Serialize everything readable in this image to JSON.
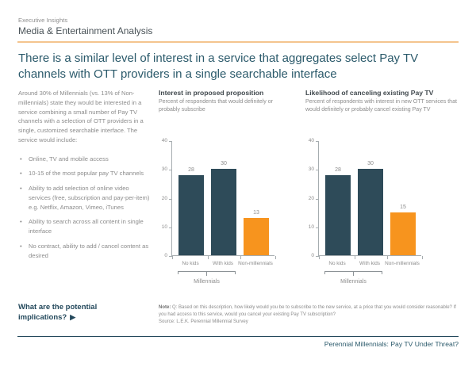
{
  "header": {
    "eyebrow": "Executive Insights",
    "title": "Media & Entertainment Analysis"
  },
  "page_title": "There is a similar level of interest in a service that aggregates select Pay TV channels with OTT providers in a single searchable interface",
  "left_column": {
    "intro": "Around 30% of Millennials (vs. 13% of Non-millennials) state they would be interested in a service combining a small number of Pay TV channels with a selection of OTT providers in a single, customized searchable interface. The service would include:",
    "bullets": [
      "Online, TV and mobile access",
      "10-15 of the most popular pay TV channels",
      "Ability to add selection of online video services (free, subscription and pay-per-item) e.g. Netflix, Amazon, Vimeo, iTunes",
      "Ability to search across all content in single interface",
      "No contract, ability to add / cancel content as desired"
    ]
  },
  "chart_data": [
    {
      "type": "bar",
      "title": "Interest in proposed proposition",
      "subtitle": "Percent of respondents that would definitely or probably subscribe",
      "categories": [
        "No kids",
        "With kids",
        "Non-millennials"
      ],
      "values": [
        28,
        30,
        13
      ],
      "bar_colors": [
        "#2E4B59",
        "#2E4B59",
        "#F7941E"
      ],
      "ylim": [
        0,
        40
      ],
      "yticks": [
        0,
        10,
        20,
        30,
        40
      ],
      "grid": false,
      "legend": "none",
      "group_label": "Millennials",
      "group_span": [
        0,
        1
      ]
    },
    {
      "type": "bar",
      "title": "Likelihood of canceling existing Pay TV",
      "subtitle": "Percent of respondents with interest in new OTT services that would definitely or probably cancel existing Pay TV",
      "categories": [
        "No kids",
        "With kids",
        "Non-millennials"
      ],
      "values": [
        28,
        30,
        15
      ],
      "bar_colors": [
        "#2E4B59",
        "#2E4B59",
        "#F7941E"
      ],
      "ylim": [
        0,
        40
      ],
      "yticks": [
        0,
        10,
        20,
        30,
        40
      ],
      "grid": false,
      "legend": "none",
      "group_label": "Millennials",
      "group_span": [
        0,
        1
      ]
    }
  ],
  "footer": {
    "implications_label": "What are the potential implications?",
    "note_label": "Note:",
    "note_text": "Q: Based on this description, how likely would you be to subscribe to the new service, at a price that you would consider reasonable? If you had access to this service, would you cancel your existing Pay TV subscription?",
    "source_text": "Source: L.E.K. Perennial Millennial Survey",
    "report_title": "Perennial Millennials: Pay TV Under Threat?"
  },
  "icons": {
    "play_arrow": "▶"
  },
  "colors": {
    "bar_dark": "#2E4B59",
    "bar_orange": "#F7941E",
    "header_rule_orange": "#F4C48E",
    "title_teal": "#2B5A6B",
    "footer_rule_navy": "#24495C"
  }
}
